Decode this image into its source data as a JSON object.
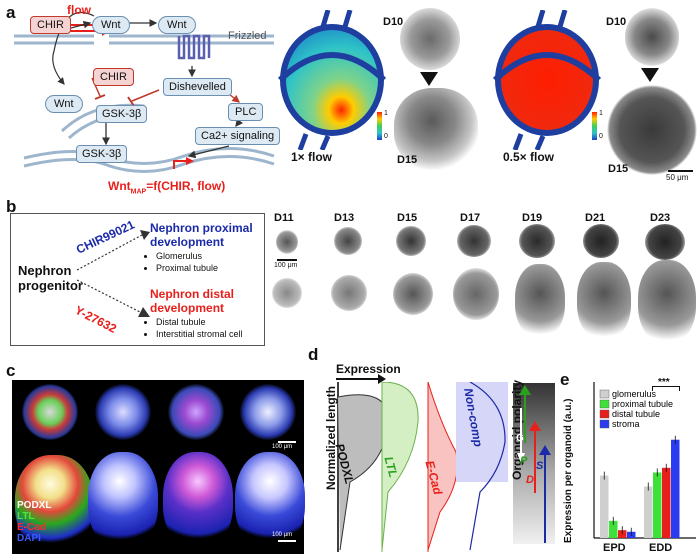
{
  "panel_a": {
    "letter": "a",
    "flow_label": "flow",
    "nodes": {
      "chir_top": "CHIR",
      "wnt_top": "Wnt",
      "wnt_receptor": "Wnt",
      "frizzled": "Frizzled",
      "chir_inside": "CHIR",
      "wnt_left": "Wnt",
      "dishevelled": "Dishevelled",
      "gsk_cyto": "GSK-3β",
      "plc": "PLC",
      "ca_signaling": "Ca2+ signaling",
      "gsk_nucleus": "GSK-3β"
    },
    "equation": {
      "prefix": "Wnt",
      "subscript": "MAP",
      "rest": "=f(CHIR, flow)"
    },
    "flow_1x": "1× flow",
    "flow_05x": "0.5× flow",
    "d10_a": "D10",
    "d15_a": "D15",
    "d10_b": "D10",
    "d15_b": "D15",
    "scale_bar": "50 μm",
    "colorbar_top": "1",
    "colorbar_bottom": "0",
    "colors": {
      "red": "#e8201c",
      "blue": "#1b2aa8",
      "node_fill": "#dde9f3",
      "chir_fill": "#f6d3d3"
    }
  },
  "panel_b": {
    "letter": "b",
    "progenitor": "Nephron progenitor",
    "chir": "CHIR99021",
    "y27632": "Y-27632",
    "proximal_title": "Nephron proximal development",
    "proximal_items": [
      "Glomerulus",
      "Proximal tubule"
    ],
    "distal_title": "Nephron distal development",
    "distal_items": [
      "Distal tubule",
      "Interstitial stromal cell"
    ],
    "days": [
      "D11",
      "D13",
      "D15",
      "D17",
      "D19",
      "D21",
      "D23"
    ],
    "scale_bar": "100 μm"
  },
  "panel_c": {
    "letter": "c",
    "legend": [
      "PODXL",
      "LTL",
      "E-Cad",
      "DAPI"
    ],
    "legend_colors": [
      "#ffffff",
      "#55e04a",
      "#ff2a2a",
      "#3a5cff"
    ],
    "scale_top": "100 μm",
    "scale_bottom": "100 μm"
  },
  "panel_d": {
    "letter": "d",
    "expression": "Expression",
    "normalized_length": "Normalized length",
    "profiles": [
      "PODXL",
      "LTL",
      "E-Cad",
      "Non-comp"
    ],
    "polarity": "Organoid polarity",
    "letters": [
      "G",
      "P",
      "S",
      "D"
    ]
  },
  "panel_e": {
    "letter": "e",
    "significance": "***",
    "chart_data": {
      "type": "bar",
      "title": "",
      "xlabel": "",
      "ylabel": "Expression per organoid (a.u.)",
      "categories": [
        "EPD",
        "EDD"
      ],
      "ylim": [
        0,
        1
      ],
      "legend_placement": "top-left",
      "series": [
        {
          "name": "glomerulus",
          "color": "#cfcfcf",
          "values": [
            0.4,
            0.33
          ]
        },
        {
          "name": "proximal tubule",
          "color": "#3fe03a",
          "values": [
            0.11,
            0.42
          ]
        },
        {
          "name": "distal tubule",
          "color": "#e8201c",
          "values": [
            0.05,
            0.45
          ]
        },
        {
          "name": "stroma",
          "color": "#2b3cf0",
          "values": [
            0.04,
            0.63
          ]
        }
      ]
    }
  }
}
